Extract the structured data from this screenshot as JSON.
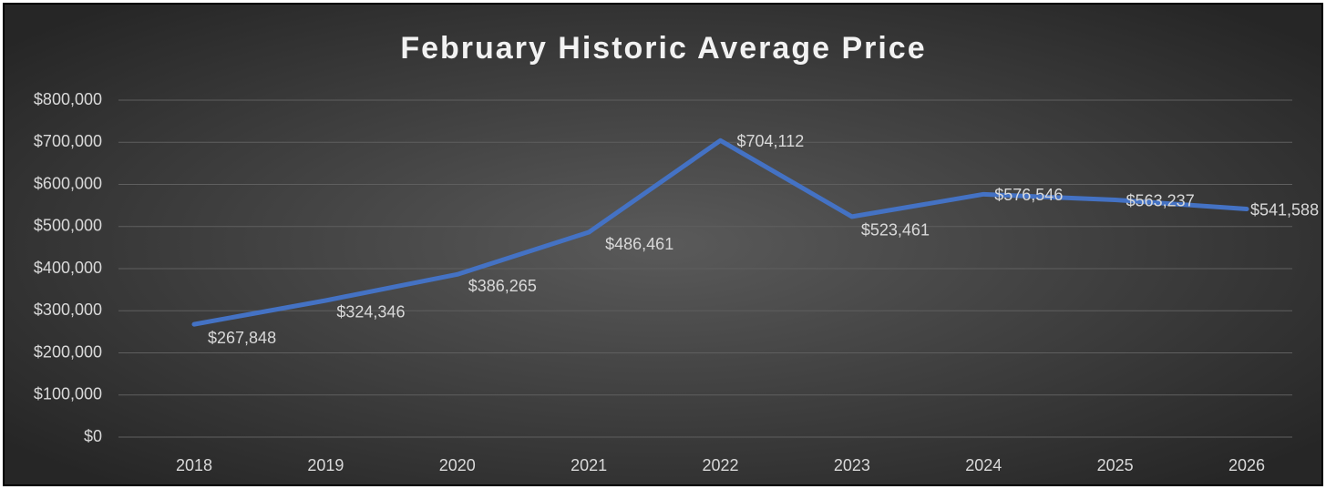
{
  "chart_data": {
    "type": "line",
    "title": "February Historic Average Price",
    "categories": [
      "2018",
      "2019",
      "2020",
      "2021",
      "2022",
      "2023",
      "2024",
      "2025",
      "2026"
    ],
    "series": [
      {
        "name": "Average Price",
        "color": "#4472c4",
        "values": [
          267848,
          324346,
          386265,
          486461,
          704112,
          523461,
          576546,
          563237,
          541588
        ],
        "value_labels": [
          "$267,848",
          "$324,346",
          "$386,265",
          "$486,461",
          "$704,112",
          "$523,461",
          "$576,546",
          "$563,237",
          "$541,588"
        ]
      }
    ],
    "ylim": [
      0,
      800000
    ],
    "yticks": [
      {
        "value": 0,
        "label": "$0"
      },
      {
        "value": 100000,
        "label": "$100,000"
      },
      {
        "value": 200000,
        "label": "$200,000"
      },
      {
        "value": 300000,
        "label": "$300,000"
      },
      {
        "value": 400000,
        "label": "$400,000"
      },
      {
        "value": 500000,
        "label": "$500,000"
      },
      {
        "value": 600000,
        "label": "$600,000"
      },
      {
        "value": 700000,
        "label": "$700,000"
      },
      {
        "value": 800000,
        "label": "$800,000"
      }
    ],
    "grid": true
  }
}
